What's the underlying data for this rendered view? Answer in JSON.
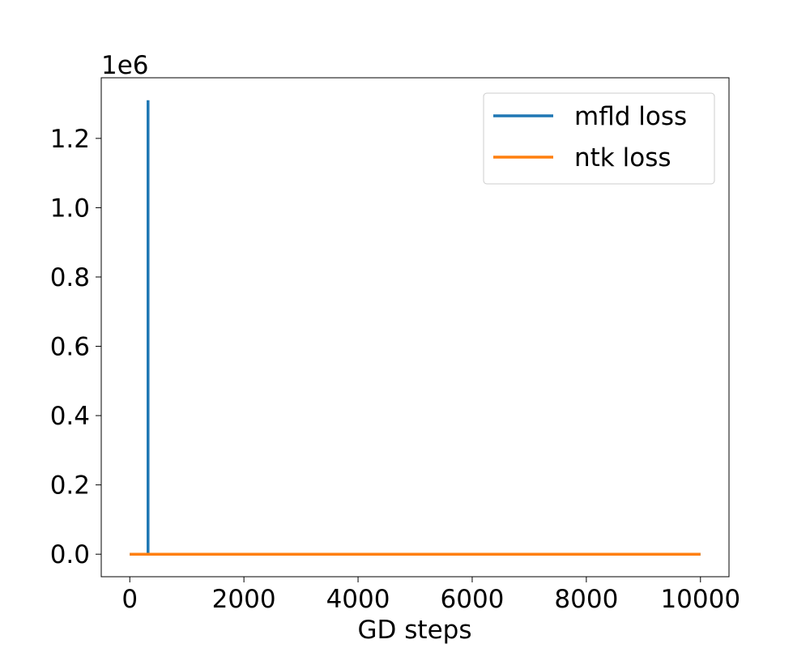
{
  "chart_data": {
    "type": "line",
    "title": "",
    "xlabel": "GD steps",
    "ylabel": "",
    "y_offset_label": "1e6",
    "y_scale": 1000000,
    "xlim": [
      -500,
      10500
    ],
    "ylim": [
      -65000,
      1375000
    ],
    "x_ticks": [
      0,
      2000,
      4000,
      6000,
      8000,
      10000
    ],
    "x_tick_labels": [
      "0",
      "2000",
      "4000",
      "6000",
      "8000",
      "10000"
    ],
    "y_ticks": [
      0,
      200000,
      400000,
      600000,
      800000,
      1000000,
      1200000
    ],
    "y_tick_labels": [
      "0.0",
      "0.2",
      "0.4",
      "0.6",
      "0.8",
      "1.0",
      "1.2"
    ],
    "grid": false,
    "legend_position": "top-right",
    "series": [
      {
        "name": "mfld loss",
        "color": "#1f77b4",
        "x": [
          0,
          320,
          320,
          320,
          330,
          330,
          10000
        ],
        "y": [
          0,
          0,
          1310000,
          0,
          0,
          0,
          0
        ]
      },
      {
        "name": "ntk loss",
        "color": "#ff7f0e",
        "x": [
          0,
          10000
        ],
        "y": [
          0,
          0
        ]
      }
    ]
  }
}
